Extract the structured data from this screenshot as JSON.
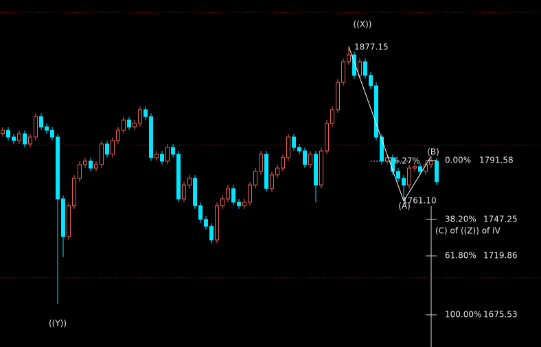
{
  "chart_data": {
    "type": "candlestick",
    "ylim": [
      1651.3,
      1912.3
    ],
    "up_color": "#f0604f",
    "down_color": "#00e5ff",
    "level_line_color": "#a01010",
    "level_lines": [
      1903.0,
      1803.0,
      1703.4
    ],
    "ohlc": [
      [
        1812.0,
        1816.8,
        1809.5,
        1814.3
      ],
      [
        1814.3,
        1816.8,
        1806.7,
        1809.2
      ],
      [
        1809.2,
        1811.7,
        1804.1,
        1806.6
      ],
      [
        1806.6,
        1814.2,
        1804.1,
        1811.7
      ],
      [
        1811.7,
        1814.2,
        1801.5,
        1804.0
      ],
      [
        1804.0,
        1811.7,
        1801.5,
        1809.2
      ],
      [
        1809.2,
        1827.1,
        1806.7,
        1824.6
      ],
      [
        1824.6,
        1827.1,
        1814.4,
        1816.9
      ],
      [
        1816.9,
        1819.4,
        1811.8,
        1814.3
      ],
      [
        1814.3,
        1816.8,
        1806.7,
        1809.2
      ],
      [
        1809.2,
        1811.7,
        1683.8,
        1762.7
      ],
      [
        1762.7,
        1765.2,
        1719.0,
        1734.4
      ],
      [
        1734.4,
        1760.1,
        1731.9,
        1757.6
      ],
      [
        1757.6,
        1780.7,
        1755.1,
        1778.2
      ],
      [
        1778.2,
        1791.0,
        1775.7,
        1788.5
      ],
      [
        1788.5,
        1793.6,
        1786.0,
        1791.1
      ],
      [
        1791.1,
        1793.6,
        1783.4,
        1785.9
      ],
      [
        1785.9,
        1791.0,
        1783.4,
        1788.5
      ],
      [
        1788.5,
        1806.5,
        1786.0,
        1804.0
      ],
      [
        1804.0,
        1806.5,
        1793.8,
        1796.3
      ],
      [
        1796.3,
        1809.1,
        1793.8,
        1806.6
      ],
      [
        1806.6,
        1816.8,
        1804.1,
        1814.3
      ],
      [
        1814.3,
        1824.5,
        1811.8,
        1822.0
      ],
      [
        1822.0,
        1824.5,
        1814.4,
        1816.9
      ],
      [
        1816.9,
        1822.0,
        1814.4,
        1819.5
      ],
      [
        1819.5,
        1832.3,
        1817.0,
        1829.8
      ],
      [
        1829.8,
        1832.3,
        1822.1,
        1824.6
      ],
      [
        1824.6,
        1827.1,
        1791.2,
        1793.7
      ],
      [
        1793.7,
        1798.8,
        1791.2,
        1796.3
      ],
      [
        1796.3,
        1798.8,
        1788.6,
        1791.1
      ],
      [
        1791.1,
        1803.9,
        1788.6,
        1801.4
      ],
      [
        1801.4,
        1803.9,
        1793.8,
        1796.3
      ],
      [
        1796.3,
        1798.8,
        1760.2,
        1762.7
      ],
      [
        1762.7,
        1775.6,
        1760.2,
        1773.1
      ],
      [
        1773.1,
        1780.7,
        1770.6,
        1778.2
      ],
      [
        1778.2,
        1780.7,
        1755.1,
        1757.6
      ],
      [
        1757.6,
        1760.1,
        1744.8,
        1747.3
      ],
      [
        1747.3,
        1749.8,
        1739.6,
        1742.1
      ],
      [
        1742.1,
        1744.6,
        1729.3,
        1731.8
      ],
      [
        1731.8,
        1760.1,
        1729.3,
        1757.6
      ],
      [
        1757.6,
        1765.2,
        1755.1,
        1762.7
      ],
      [
        1762.7,
        1773.0,
        1760.2,
        1770.5
      ],
      [
        1770.5,
        1773.0,
        1757.7,
        1760.2
      ],
      [
        1760.2,
        1762.7,
        1755.1,
        1757.6
      ],
      [
        1757.6,
        1762.7,
        1755.1,
        1760.2
      ],
      [
        1760.2,
        1775.6,
        1757.7,
        1773.1
      ],
      [
        1773.1,
        1785.9,
        1770.6,
        1783.4
      ],
      [
        1783.4,
        1798.8,
        1780.9,
        1796.3
      ],
      [
        1796.3,
        1798.8,
        1768.0,
        1770.5
      ],
      [
        1770.5,
        1783.3,
        1768.0,
        1780.8
      ],
      [
        1780.8,
        1788.4,
        1778.3,
        1785.9
      ],
      [
        1785.9,
        1796.2,
        1783.4,
        1793.7
      ],
      [
        1793.7,
        1811.7,
        1791.2,
        1809.2
      ],
      [
        1809.2,
        1811.7,
        1798.9,
        1801.4
      ],
      [
        1801.4,
        1803.9,
        1796.3,
        1798.8
      ],
      [
        1798.8,
        1801.3,
        1786.0,
        1788.5
      ],
      [
        1788.5,
        1798.8,
        1786.0,
        1796.3
      ],
      [
        1796.3,
        1798.8,
        1760.0,
        1773.1
      ],
      [
        1773.1,
        1801.3,
        1770.6,
        1798.8
      ],
      [
        1798.8,
        1822.0,
        1796.3,
        1819.5
      ],
      [
        1819.5,
        1832.3,
        1817.0,
        1829.8
      ],
      [
        1829.8,
        1852.9,
        1827.3,
        1850.4
      ],
      [
        1850.4,
        1868.4,
        1847.9,
        1865.9
      ],
      [
        1865.9,
        1877.2,
        1863.4,
        1871.0
      ],
      [
        1871.0,
        1873.5,
        1853.1,
        1855.6
      ],
      [
        1855.6,
        1868.4,
        1853.1,
        1865.9
      ],
      [
        1865.9,
        1868.4,
        1853.1,
        1855.6
      ],
      [
        1855.6,
        1858.1,
        1845.3,
        1847.8
      ],
      [
        1847.8,
        1850.3,
        1806.7,
        1809.2
      ],
      [
        1809.2,
        1811.7,
        1788.6,
        1791.1
      ],
      [
        1791.1,
        1796.2,
        1788.6,
        1793.7
      ],
      [
        1793.7,
        1796.2,
        1780.9,
        1783.4
      ],
      [
        1783.4,
        1785.9,
        1775.7,
        1778.2
      ],
      [
        1778.2,
        1780.7,
        1761.1,
        1773.1
      ],
      [
        1773.1,
        1788.4,
        1770.6,
        1785.9
      ],
      [
        1785.9,
        1789.5,
        1783.4,
        1787.0
      ],
      [
        1787.0,
        1789.5,
        1780.9,
        1783.4
      ],
      [
        1783.4,
        1791.0,
        1780.9,
        1788.5
      ],
      [
        1788.5,
        1794.7,
        1786.0,
        1791.1
      ],
      [
        1791.1,
        1793.6,
        1773.1,
        1775.6
      ]
    ],
    "zigzag": {
      "x": [
        63,
        73,
        78
      ],
      "values": [
        1877.2,
        1761.1,
        1794.7
      ]
    },
    "fibonacci": [
      {
        "label": "0.00%",
        "price": 1791.58
      },
      {
        "label": "38.20%",
        "price": 1747.25
      },
      {
        "label": "61.80%",
        "price": 1719.86
      },
      {
        "label": "100.00%",
        "price": 1675.53
      }
    ],
    "annotations": {
      "wave_x": "((X))",
      "wave_y": "((Y))",
      "wave_a": "(A)",
      "wave_b": "(B)",
      "high_price": "1877.15",
      "low_price": "1761.10",
      "retracement": "76.27%",
      "wave_c": "(C) of ((Z)) of IV"
    }
  }
}
